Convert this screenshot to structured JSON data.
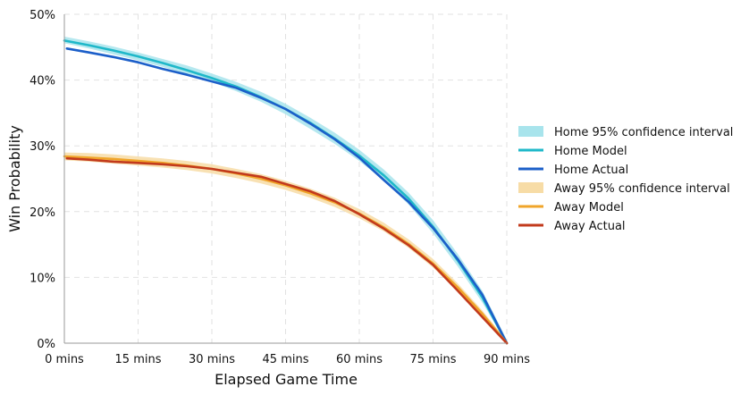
{
  "chart_data": {
    "type": "line",
    "title": "",
    "xlabel": "Elapsed Game Time",
    "ylabel": "Win Probability",
    "xlim": [
      0,
      90
    ],
    "ylim": [
      0,
      50
    ],
    "x_ticks": [
      0,
      15,
      30,
      45,
      60,
      75,
      90
    ],
    "x_tick_labels": [
      "0 mins",
      "15 mins",
      "30 mins",
      "45 mins",
      "60 mins",
      "75 mins",
      "90 mins"
    ],
    "y_ticks": [
      0,
      10,
      20,
      30,
      40,
      50
    ],
    "y_tick_labels": [
      "0%",
      "10%",
      "20%",
      "30%",
      "40%",
      "50%"
    ],
    "grid": true,
    "legend_position": "right",
    "series": [
      {
        "name": "Home 95% confidence interval",
        "kind": "band",
        "color": "#a8e4ec",
        "x": [
          0,
          5,
          10,
          15,
          20,
          25,
          30,
          35,
          40,
          45,
          50,
          55,
          60,
          65,
          70,
          75,
          80,
          85,
          90
        ],
        "lower": [
          45.6,
          44.8,
          43.9,
          43.0,
          42.0,
          40.9,
          39.7,
          38.3,
          36.7,
          34.8,
          32.6,
          30.3,
          27.7,
          24.7,
          21.1,
          16.7,
          11.7,
          6.2,
          0.0
        ],
        "upper": [
          46.6,
          45.9,
          45.1,
          44.2,
          43.2,
          42.2,
          41.0,
          39.7,
          38.2,
          36.4,
          34.3,
          32.0,
          29.4,
          26.4,
          22.9,
          18.7,
          13.6,
          8.0,
          0.5
        ]
      },
      {
        "name": "Home Model",
        "kind": "line",
        "color": "#1fb8c9",
        "x": [
          0,
          5,
          10,
          15,
          20,
          25,
          30,
          35,
          40,
          45,
          50,
          55,
          60,
          65,
          70,
          75,
          80,
          85,
          90
        ],
        "y": [
          46.0,
          45.3,
          44.5,
          43.6,
          42.6,
          41.5,
          40.3,
          39.0,
          37.4,
          35.6,
          33.5,
          31.1,
          28.5,
          25.5,
          22.0,
          17.7,
          12.6,
          7.0,
          0.0
        ]
      },
      {
        "name": "Home Actual",
        "kind": "line",
        "color": "#1c5fc9",
        "x": [
          0.5,
          5,
          10,
          15,
          20,
          25,
          30,
          35,
          40,
          45,
          50,
          55,
          60,
          65,
          70,
          75,
          80,
          85,
          90
        ],
        "y": [
          44.8,
          44.2,
          43.5,
          42.7,
          41.7,
          40.8,
          39.8,
          38.8,
          37.3,
          35.6,
          33.4,
          31.0,
          28.2,
          24.8,
          21.5,
          17.5,
          12.8,
          7.4,
          0.0
        ]
      },
      {
        "name": "Away 95% confidence interval",
        "kind": "band",
        "color": "#f7dca6",
        "x": [
          0,
          5,
          10,
          15,
          20,
          25,
          30,
          35,
          40,
          45,
          50,
          55,
          60,
          65,
          70,
          75,
          80,
          85,
          90
        ],
        "lower": [
          27.8,
          27.6,
          27.3,
          27.0,
          26.7,
          26.3,
          25.8,
          25.1,
          24.3,
          23.3,
          22.1,
          20.7,
          19.0,
          17.0,
          14.5,
          11.5,
          7.9,
          4.0,
          0.0
        ],
        "upper": [
          29.0,
          28.9,
          28.7,
          28.4,
          28.1,
          27.7,
          27.2,
          26.5,
          25.7,
          24.7,
          23.5,
          22.1,
          20.4,
          18.3,
          15.8,
          12.8,
          9.1,
          5.0,
          0.4
        ]
      },
      {
        "name": "Away Model",
        "kind": "line",
        "color": "#f0a52a",
        "x": [
          0,
          5,
          10,
          15,
          20,
          25,
          30,
          35,
          40,
          45,
          50,
          55,
          60,
          65,
          70,
          75,
          80,
          85,
          90
        ],
        "y": [
          28.4,
          28.2,
          28.0,
          27.7,
          27.4,
          27.0,
          26.5,
          25.8,
          25.0,
          24.0,
          22.8,
          21.4,
          19.7,
          17.6,
          15.1,
          12.1,
          8.5,
          4.5,
          0.0
        ]
      },
      {
        "name": "Away Actual",
        "kind": "line",
        "color": "#c23a1c",
        "x": [
          0.5,
          5,
          10,
          15,
          20,
          25,
          30,
          35,
          40,
          45,
          50,
          55,
          60,
          65,
          70,
          75,
          80,
          85,
          90
        ],
        "y": [
          28.1,
          27.9,
          27.6,
          27.4,
          27.2,
          26.9,
          26.5,
          25.9,
          25.3,
          24.2,
          23.1,
          21.6,
          19.6,
          17.4,
          14.9,
          11.9,
          8.0,
          4.0,
          0.0
        ]
      }
    ]
  }
}
